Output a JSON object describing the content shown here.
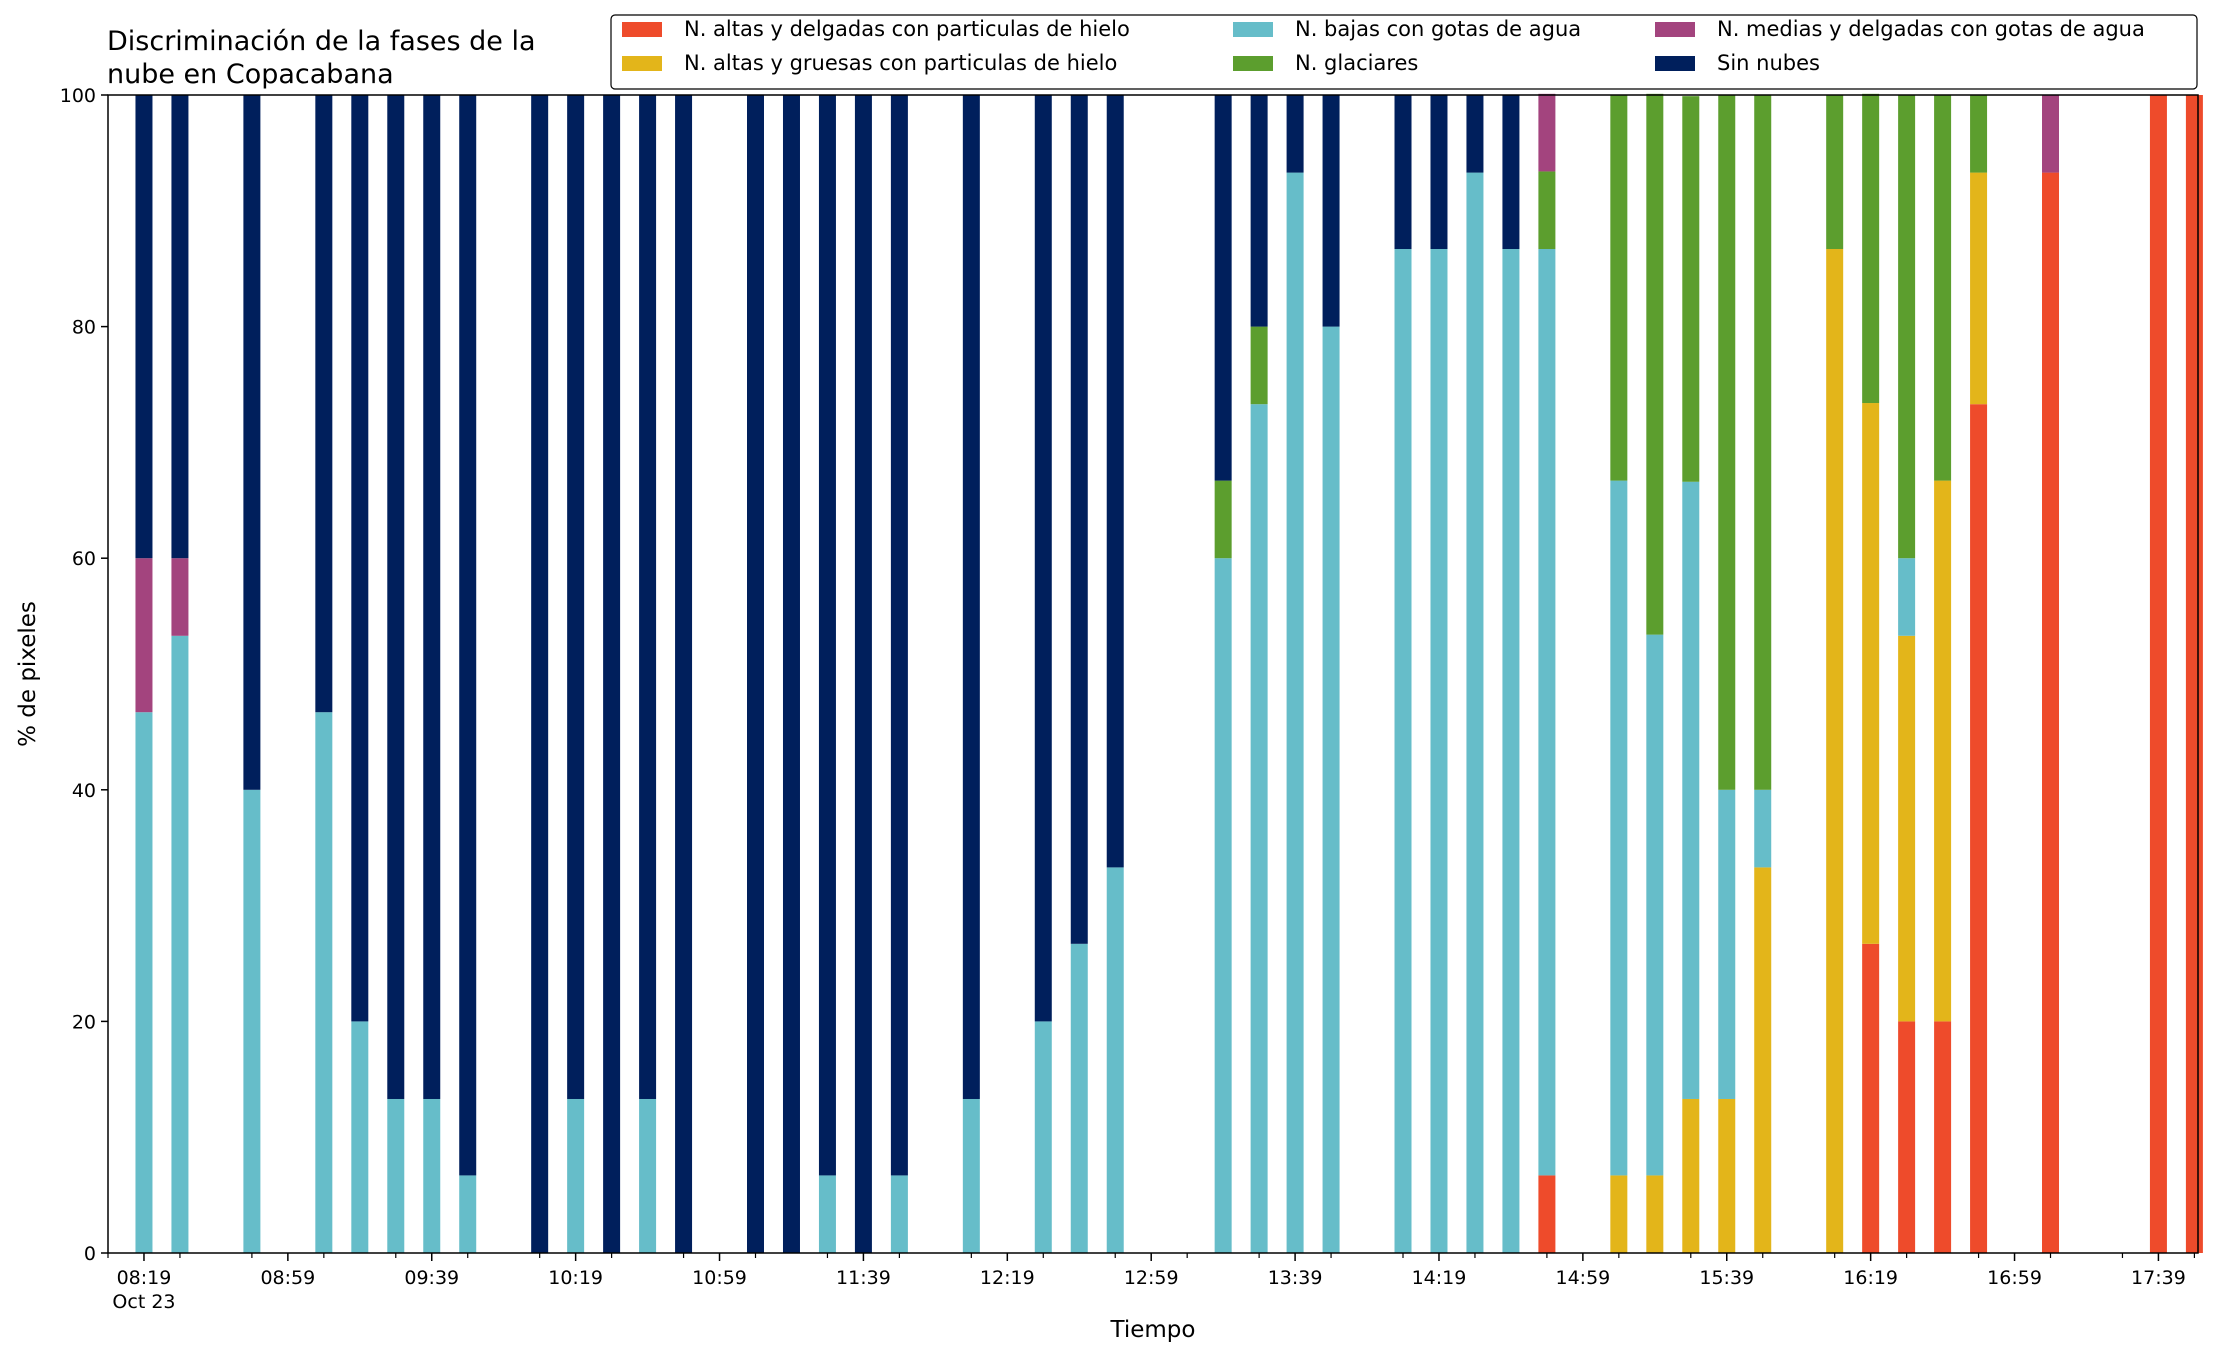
{
  "chart_data": {
    "type": "bar",
    "stacked": true,
    "title_lines": [
      "Discriminación de la fases de la",
      "nube en Copacabana"
    ],
    "xlabel": "Tiempo",
    "ylabel": "% de pixeles",
    "ylim": [
      0,
      100
    ],
    "yticks": [
      "0",
      "20",
      "40",
      "60",
      "80",
      "100"
    ],
    "xlim_minutes": [
      489,
      1070
    ],
    "xticks": [
      {
        "label": "08:19",
        "sublabel": "Oct 23",
        "minute": 499
      },
      {
        "label": "08:59",
        "minute": 539
      },
      {
        "label": "09:39",
        "minute": 579
      },
      {
        "label": "10:19",
        "minute": 619
      },
      {
        "label": "10:59",
        "minute": 659
      },
      {
        "label": "11:39",
        "minute": 699
      },
      {
        "label": "12:19",
        "minute": 739
      },
      {
        "label": "12:59",
        "minute": 779
      },
      {
        "label": "13:39",
        "minute": 819
      },
      {
        "label": "14:19",
        "minute": 859
      },
      {
        "label": "14:59",
        "minute": 899
      },
      {
        "label": "15:39",
        "minute": 939
      },
      {
        "label": "16:19",
        "minute": 979
      },
      {
        "label": "16:59",
        "minute": 1019
      },
      {
        "label": "17:39",
        "minute": 1059
      }
    ],
    "grid": false,
    "legend_position": "top-right",
    "legend_columns": 3,
    "series": [
      {
        "name": "N. altas y delgadas con particulas de hielo",
        "color": "#ee4b2b"
      },
      {
        "name": "N. altas y gruesas con particulas de hielo",
        "color": "#e3b51a"
      },
      {
        "name": "N. bajas con gotas de agua",
        "color": "#66bdc9"
      },
      {
        "name": "N. glaciares",
        "color": "#5c9e2e"
      },
      {
        "name": "N. medias y delgadas con gotas de agua",
        "color": "#a3447e"
      },
      {
        "name": "Sin nubes",
        "color": "#001f5c"
      }
    ],
    "times": [
      "08:19",
      "08:29",
      "08:49",
      "09:09",
      "09:19",
      "09:29",
      "09:39",
      "09:49",
      "10:09",
      "10:19",
      "10:29",
      "10:39",
      "10:49",
      "11:09",
      "11:19",
      "11:29",
      "11:39",
      "11:49",
      "12:09",
      "12:29",
      "12:39",
      "12:49",
      "13:19",
      "13:29",
      "13:39",
      "13:49",
      "14:09",
      "14:19",
      "14:29",
      "14:39",
      "14:49",
      "15:09",
      "15:19",
      "15:29",
      "15:39",
      "15:49",
      "16:09",
      "16:19",
      "16:29",
      "16:39",
      "16:49",
      "17:09",
      "17:39",
      "17:49"
    ],
    "values": [
      [
        0,
        0,
        46.7,
        0,
        13.3,
        40
      ],
      [
        0,
        0,
        53.3,
        0,
        6.7,
        40
      ],
      [
        0,
        0,
        40,
        0,
        0,
        60
      ],
      [
        0,
        0,
        46.7,
        0,
        0,
        53.3
      ],
      [
        0,
        0,
        20,
        0,
        0,
        80
      ],
      [
        0,
        0,
        13.3,
        0,
        0,
        86.7
      ],
      [
        0,
        0,
        13.3,
        0,
        0,
        86.7
      ],
      [
        0,
        0,
        6.7,
        0,
        0,
        93.3
      ],
      [
        0,
        0,
        0,
        0,
        0,
        100
      ],
      [
        0,
        0,
        13.3,
        0,
        0,
        86.7
      ],
      [
        0,
        0,
        0,
        0,
        0,
        100
      ],
      [
        0,
        0,
        13.3,
        0,
        0,
        86.7
      ],
      [
        0,
        0,
        0,
        0,
        0,
        100
      ],
      [
        0,
        0,
        0,
        0,
        0,
        100
      ],
      [
        0,
        0,
        0,
        0,
        0,
        100
      ],
      [
        0,
        0,
        6.7,
        0,
        0,
        93.3
      ],
      [
        0,
        0,
        0,
        0,
        0,
        100
      ],
      [
        0,
        0,
        6.7,
        0,
        0,
        93.3
      ],
      [
        0,
        0,
        13.3,
        0,
        0,
        86.7
      ],
      [
        0,
        0,
        20,
        0,
        0,
        80
      ],
      [
        0,
        0,
        26.7,
        0,
        0,
        73.3
      ],
      [
        0,
        0,
        33.3,
        0,
        0,
        66.7
      ],
      [
        0,
        0,
        60,
        6.7,
        0,
        33.3
      ],
      [
        0,
        0,
        73.3,
        6.7,
        0,
        20
      ],
      [
        0,
        0,
        93.3,
        0,
        0,
        6.7
      ],
      [
        0,
        0,
        80,
        0,
        0,
        20
      ],
      [
        0,
        0,
        86.7,
        0,
        0,
        13.3
      ],
      [
        0,
        0,
        86.7,
        0,
        0,
        13.3
      ],
      [
        0,
        0,
        93.3,
        0,
        0,
        6.7
      ],
      [
        0,
        0,
        86.7,
        0,
        0,
        13.3
      ],
      [
        6.7,
        0,
        80,
        6.7,
        6.7,
        0
      ],
      [
        0,
        6.7,
        60,
        33.3,
        0,
        0
      ],
      [
        0,
        6.7,
        46.7,
        46.7,
        0,
        0
      ],
      [
        0,
        13.3,
        53.3,
        33.3,
        0,
        0
      ],
      [
        0,
        13.3,
        26.7,
        60,
        0,
        0
      ],
      [
        0,
        33.3,
        6.7,
        60,
        0,
        0
      ],
      [
        0,
        86.7,
        0,
        13.3,
        0,
        0
      ],
      [
        26.7,
        46.7,
        0,
        26.7,
        0,
        0
      ],
      [
        20,
        33.3,
        6.7,
        40,
        0,
        0
      ],
      [
        20,
        46.7,
        0,
        33.3,
        0,
        0
      ],
      [
        73.3,
        20,
        0,
        6.7,
        0,
        0
      ],
      [
        93.3,
        0,
        0,
        0,
        6.7,
        0
      ],
      [
        100,
        0,
        0,
        0,
        0,
        0
      ],
      [
        100,
        0,
        0,
        0,
        0,
        0
      ]
    ]
  }
}
